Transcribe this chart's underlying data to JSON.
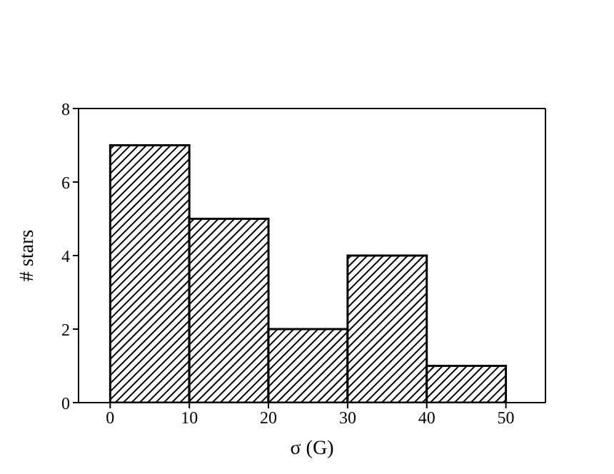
{
  "chart_data": {
    "type": "histogram",
    "xlabel": "σ (G)",
    "ylabel": "# stars",
    "bins": [
      0,
      10,
      20,
      30,
      40,
      50
    ],
    "values": [
      7,
      5,
      2,
      4,
      1
    ],
    "color": "#000000",
    "xlim": [
      -4,
      55
    ],
    "xticks": [
      0,
      10,
      20,
      30,
      40,
      50
    ],
    "ylim": [
      0,
      8
    ],
    "yticks": [
      0,
      2,
      4,
      6,
      8
    ]
  }
}
